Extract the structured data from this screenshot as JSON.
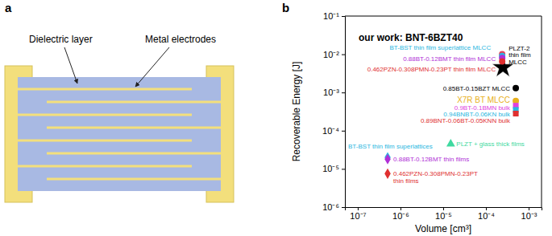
{
  "panel_a": {
    "label": "a",
    "dielectric_label": "Dielectric layer",
    "electrode_label": "Metal electrodes"
  },
  "chart_data": {
    "type": "scatter",
    "panel_label": "b",
    "x_label": "Volume [cm³]",
    "y_label": "Recoverable Energy [J]",
    "log": true,
    "xlim": [
      5e-08,
      0.002
    ],
    "ylim": [
      1e-06,
      0.1
    ],
    "xticks": [
      {
        "value": 1e-07,
        "label": "10⁻⁷"
      },
      {
        "value": 1e-06,
        "label": "10⁻⁶"
      },
      {
        "value": 1e-05,
        "label": "10⁻⁵"
      },
      {
        "value": 0.0001,
        "label": "10⁻⁴"
      },
      {
        "value": 0.001,
        "label": "10⁻³"
      }
    ],
    "yticks": [
      {
        "value": 1e-06,
        "label": "10⁻⁶"
      },
      {
        "value": 1e-05,
        "label": "10⁻⁵"
      },
      {
        "value": 0.0001,
        "label": "10⁻⁴"
      },
      {
        "value": 0.001,
        "label": "10⁻³"
      },
      {
        "value": 0.01,
        "label": "10⁻²"
      },
      {
        "value": 0.1,
        "label": "10⁻¹"
      }
    ],
    "series": [
      {
        "name": "our work: BNT-6BZT40",
        "color": "#000000",
        "marker": "star",
        "x": [
          0.00025
        ],
        "values": [
          0.0045
        ]
      },
      {
        "name": "PLZT-2\nthin film\nMLCC",
        "color": "#e8415a",
        "marker": "circle",
        "x": [
          0.00024
        ],
        "values": [
          0.01
        ]
      },
      {
        "name": "BT-BST thin film superlattice MLCC",
        "color": "#29b6e0",
        "marker": "circle",
        "x": [
          0.00024
        ],
        "values": [
          0.009
        ]
      },
      {
        "name": "0.88BT-0.12BMT thin film MLCC",
        "color": "#b02fd6",
        "marker": "circle",
        "x": [
          0.00024
        ],
        "values": [
          0.008
        ]
      },
      {
        "name": "0.462PZN-0.308PMN-0.23PT thin film MLCC",
        "color": "#e03030",
        "marker": "circle",
        "x": [
          0.00024
        ],
        "values": [
          0.0065
        ]
      },
      {
        "name": "0.85BT-0.15BZT MLCC",
        "color": "#000000",
        "marker": "circle",
        "x": [
          0.0005
        ],
        "values": [
          0.0013
        ]
      },
      {
        "name": "X7R BT MLCC",
        "color": "#e8b01c",
        "marker": "circle",
        "x": [
          0.0005
        ],
        "values": [
          0.0006
        ]
      },
      {
        "name": "0.9BT-0.1BMN bulk",
        "color": "#e040e0",
        "marker": "square",
        "x": [
          0.0005
        ],
        "values": [
          0.00045
        ]
      },
      {
        "name": "0.94BNBT-0.06KN bulk",
        "color": "#29b6e0",
        "marker": "square",
        "x": [
          0.0005
        ],
        "values": [
          0.00035
        ]
      },
      {
        "name": "0.89BNT-0.06BT-0.05KNN bulk",
        "color": "#e03030",
        "marker": "square",
        "x": [
          0.0005
        ],
        "values": [
          0.00028
        ]
      },
      {
        "name": "PLZT + glass thick films",
        "color": "#3fd9a0",
        "marker": "triangle",
        "x": [
          1.5e-05
        ],
        "values": [
          4.5e-05
        ]
      },
      {
        "name": "BT-BST thin film superlattices",
        "color": "#29b6e0",
        "marker": "diamond",
        "x": [
          5e-07
        ],
        "values": [
          2e-05
        ]
      },
      {
        "name": "0.88BT-0.12BMT thin films",
        "color": "#b02fd6",
        "marker": "diamond",
        "x": [
          5e-07
        ],
        "values": [
          1.8e-05
        ]
      },
      {
        "name": "0.462PZN-0.308PMN-0.23PT\nthin films",
        "color": "#e03030",
        "marker": "diamond",
        "x": [
          5e-07
        ],
        "values": [
          7.5e-06
        ]
      }
    ]
  }
}
